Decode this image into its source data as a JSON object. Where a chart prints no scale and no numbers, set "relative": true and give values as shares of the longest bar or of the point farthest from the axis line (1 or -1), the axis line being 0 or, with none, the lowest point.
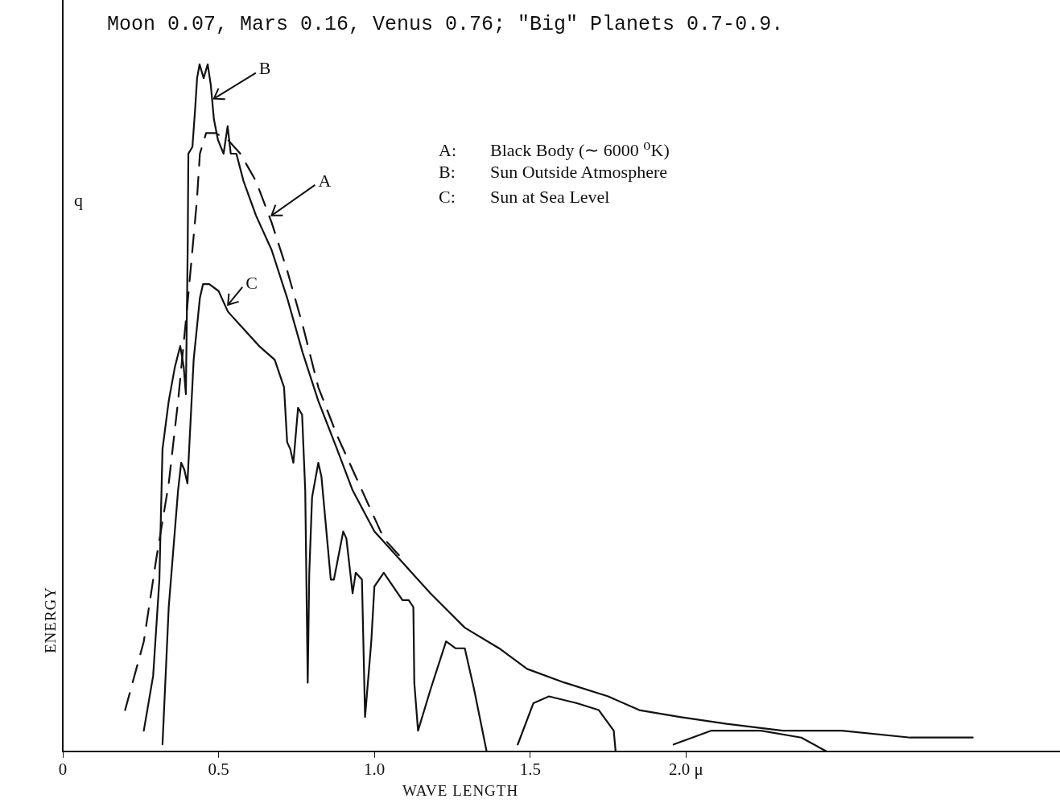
{
  "chart_data": {
    "type": "line",
    "title": "Moon 0.07, Mars 0.16, Venus 0.76; \"Big\" Planets 0.7-0.9.",
    "xlabel": "WAVE LENGTH",
    "ylabel": "ENERGY",
    "relative": true,
    "xlim": [
      0,
      3.2
    ],
    "xticks": [
      0,
      0.5,
      {
        "value": 1,
        "label": "1.0"
      },
      1.5,
      {
        "value": 2,
        "label": "2.0 μ"
      }
    ],
    "grid": false,
    "legend": false,
    "marker": "none",
    "line_style": "solid",
    "annotations": [
      "q",
      "A:  Black Body (∼ 6000 $^{o}$K)",
      "B:  Sun Outside Atmosphere",
      "C:  Sun at Sea Level",
      {
        "text": "A",
        "x": 0.67,
        "y": 0.78
      },
      {
        "text": "B",
        "x": 0.485,
        "y": 0.95
      },
      {
        "text": "C",
        "x": 0.53,
        "y": 0.65
      }
    ],
    "series": [
      {
        "color": "#111111",
        "line_style": "dashed",
        "x": [
          0.2,
          0.26,
          0.3,
          0.34,
          0.37,
          0.4,
          0.43,
          0.44,
          0.46,
          0.49,
          0.53,
          0.57,
          0.62,
          0.67,
          0.72,
          0.77,
          0.82,
          0.88,
          0.93,
          0.98,
          1.03,
          1.09
        ],
        "values": [
          0.06,
          0.16,
          0.28,
          0.39,
          0.51,
          0.65,
          0.8,
          0.87,
          0.9,
          0.9,
          0.89,
          0.87,
          0.83,
          0.77,
          0.7,
          0.62,
          0.53,
          0.46,
          0.41,
          0.36,
          0.31,
          0.28
        ]
      },
      {
        "color": "#111111",
        "x": [
          0.26,
          0.29,
          0.31,
          0.32,
          0.34,
          0.36,
          0.377,
          0.388,
          0.395,
          0.401,
          0.403,
          0.416,
          0.424,
          0.431,
          0.439,
          0.452,
          0.465,
          0.475,
          0.485,
          0.498,
          0.516,
          0.529,
          0.539,
          0.557,
          0.58,
          0.62,
          0.67,
          0.72,
          0.77,
          0.82,
          0.88,
          0.93,
          1.0,
          1.1,
          1.18,
          1.29,
          1.4,
          1.49,
          1.61,
          1.75,
          1.85,
          1.98,
          2.13,
          2.31,
          2.5,
          2.72,
          2.92
        ],
        "values": [
          0.03,
          0.11,
          0.25,
          0.44,
          0.51,
          0.56,
          0.59,
          0.56,
          0.52,
          0.74,
          0.87,
          0.88,
          0.93,
          0.98,
          1,
          0.98,
          1,
          0.97,
          0.92,
          0.89,
          0.87,
          0.91,
          0.87,
          0.87,
          0.83,
          0.78,
          0.73,
          0.66,
          0.58,
          0.51,
          0.44,
          0.38,
          0.32,
          0.27,
          0.23,
          0.18,
          0.15,
          0.12,
          0.1,
          0.08,
          0.06,
          0.05,
          0.04,
          0.03,
          0.03,
          0.02,
          0.02
        ]
      },
      {
        "color": "#111111",
        "x": [
          0.32,
          0.34,
          0.37,
          0.38,
          0.39,
          0.4,
          0.42,
          0.44,
          0.45,
          0.47,
          0.5,
          0.53,
          0.57,
          0.63,
          0.68,
          0.71,
          0.72,
          0.73,
          0.74,
          0.755,
          0.768,
          0.778,
          0.786,
          0.791,
          0.8,
          0.82,
          0.83,
          0.85,
          0.86,
          0.87,
          0.9,
          0.91,
          0.93,
          0.94,
          0.96,
          0.97,
          0.99,
          1,
          1.03,
          1.06,
          1.09,
          1.11,
          1.125,
          1.128,
          1.14,
          1.18,
          1.23,
          1.26,
          1.27,
          1.29,
          1.32,
          1.36,
          1.41,
          1.46,
          1.51,
          1.56,
          1.65,
          1.72,
          1.768,
          1.774,
          1.87,
          1.96,
          2.08,
          2.24,
          2.37,
          2.45
        ],
        "values": [
          0.01,
          0.21,
          0.38,
          0.42,
          0.41,
          0.39,
          0.57,
          0.66,
          0.68,
          0.68,
          0.67,
          0.64,
          0.62,
          0.59,
          0.57,
          0.53,
          0.45,
          0.44,
          0.42,
          0.5,
          0.49,
          0.38,
          0.1,
          0.26,
          0.37,
          0.42,
          0.4,
          0.3,
          0.25,
          0.25,
          0.32,
          0.31,
          0.23,
          0.26,
          0.25,
          0.05,
          0.16,
          0.24,
          0.26,
          0.24,
          0.22,
          0.22,
          0.21,
          0.1,
          0.03,
          0.09,
          0.16,
          0.15,
          0.15,
          0.15,
          0.09,
          0,
          null,
          0.01,
          0.07,
          0.08,
          0.07,
          0.06,
          0.03,
          0,
          null,
          0.01,
          0.03,
          0.03,
          0.02,
          0
        ]
      }
    ]
  }
}
